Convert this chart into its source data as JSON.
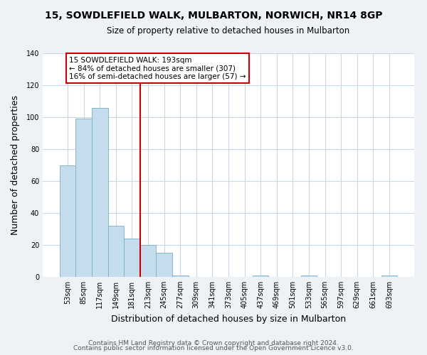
{
  "title": "15, SOWDLEFIELD WALK, MULBARTON, NORWICH, NR14 8GP",
  "subtitle": "Size of property relative to detached houses in Mulbarton",
  "xlabel": "Distribution of detached houses by size in Mulbarton",
  "ylabel": "Number of detached properties",
  "bar_labels": [
    "53sqm",
    "85sqm",
    "117sqm",
    "149sqm",
    "181sqm",
    "213sqm",
    "245sqm",
    "277sqm",
    "309sqm",
    "341sqm",
    "373sqm",
    "405sqm",
    "437sqm",
    "469sqm",
    "501sqm",
    "533sqm",
    "565sqm",
    "597sqm",
    "629sqm",
    "661sqm",
    "693sqm"
  ],
  "bar_values": [
    70,
    99,
    106,
    32,
    24,
    20,
    15,
    1,
    0,
    0,
    0,
    0,
    1,
    0,
    0,
    1,
    0,
    0,
    0,
    0,
    1
  ],
  "bar_color": "#c5dced",
  "bar_edge_color": "#7aafc8",
  "vline_x": 4.5,
  "vline_color": "#cc0000",
  "annotation_title": "15 SOWDLEFIELD WALK: 193sqm",
  "annotation_line1": "← 84% of detached houses are smaller (307)",
  "annotation_line2": "16% of semi-detached houses are larger (57) →",
  "annotation_box_color": "#ffffff",
  "annotation_box_edge": "#cc0000",
  "ylim": [
    0,
    140
  ],
  "yticks": [
    0,
    20,
    40,
    60,
    80,
    100,
    120,
    140
  ],
  "footer1": "Contains HM Land Registry data © Crown copyright and database right 2024.",
  "footer2": "Contains public sector information licensed under the Open Government Licence v3.0.",
  "bg_color": "#eef2f7",
  "plot_bg_color": "#ffffff",
  "grid_color": "#c8d8e8",
  "title_fontsize": 10,
  "subtitle_fontsize": 8.5,
  "axis_label_fontsize": 9,
  "tick_fontsize": 7,
  "annotation_fontsize": 7.5,
  "footer_fontsize": 6.5
}
